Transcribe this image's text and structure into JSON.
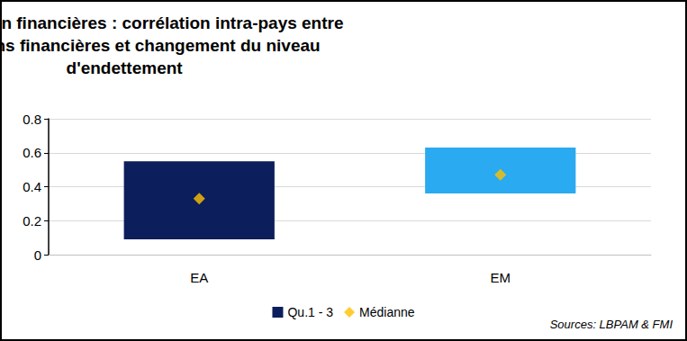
{
  "chart_data": {
    "type": "range_bar",
    "title": "Sociétés non financières : corrélation intra-pays entre\nconditions financières et changement du niveau\nd'endettement",
    "source": "Sources: LBPAM & FMI",
    "categories": [
      "EA",
      "EM"
    ],
    "series": [
      {
        "name": "Qu.1 - 3",
        "type": "range",
        "color": "#0c1e5b",
        "colors": [
          "#0c1e5b",
          "#2aaaf0"
        ],
        "low": [
          0.09,
          0.36
        ],
        "high": [
          0.55,
          0.63
        ]
      },
      {
        "name": "Médianne",
        "type": "scatter",
        "marker": "diamond",
        "color": "#ffc000",
        "values": [
          0.33,
          0.47
        ]
      }
    ],
    "ylim": [
      0,
      0.8
    ],
    "yticks": [
      0,
      0.2,
      0.4,
      0.6,
      0.8
    ],
    "grid": true,
    "legend": "bottom"
  }
}
